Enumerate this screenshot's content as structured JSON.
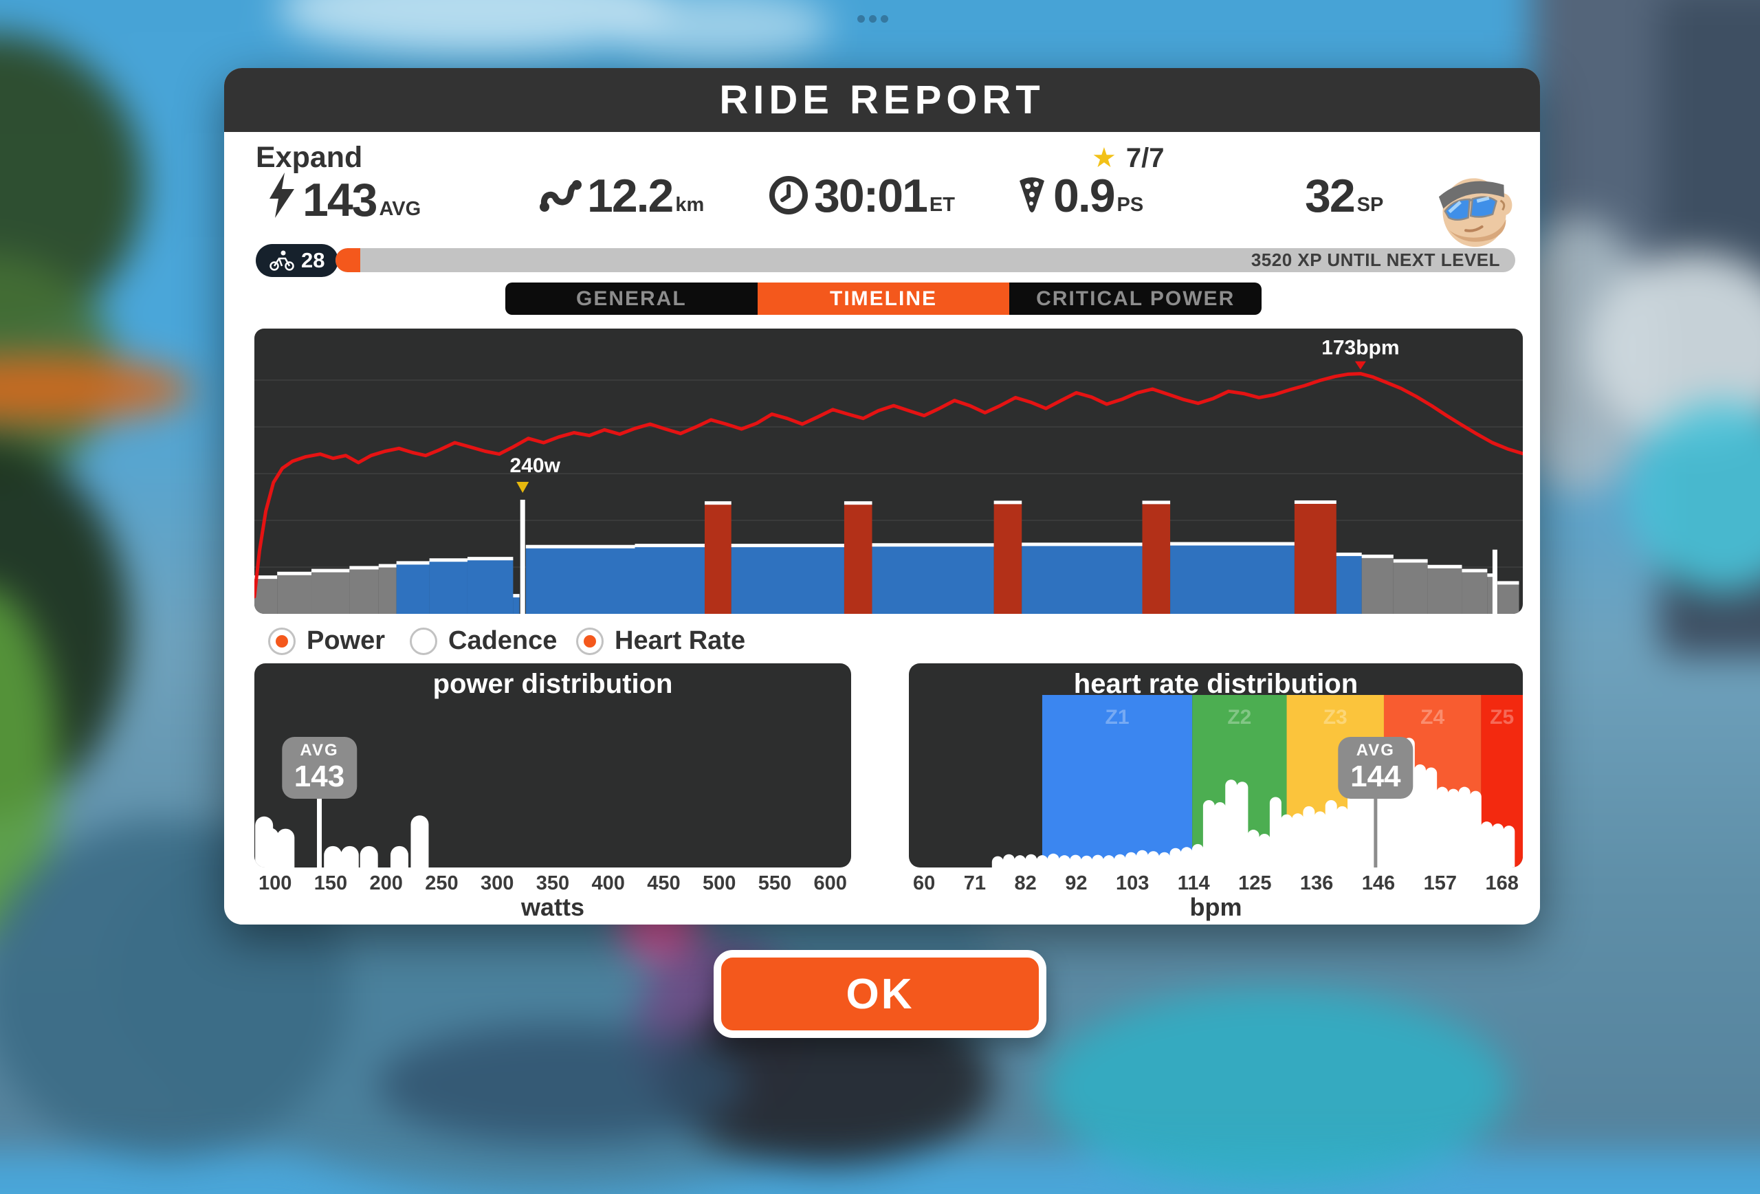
{
  "window": {
    "title": "RIDE REPORT"
  },
  "header": {
    "expand_label": "Expand",
    "route_goal": "7/7"
  },
  "stats": [
    {
      "icon": "lightning-icon",
      "value": "143",
      "unit": "AVG"
    },
    {
      "icon": "route-icon",
      "value": "12.2",
      "unit": "km"
    },
    {
      "icon": "clock-icon",
      "value": "30:01",
      "unit": "ET"
    },
    {
      "icon": "pizza-icon",
      "value": "0.9",
      "unit": "PS"
    },
    {
      "icon": "none",
      "value": "32",
      "unit": "SP"
    }
  ],
  "level": {
    "value": "28",
    "progress_pct": 2.1,
    "xp_text": "3520 XP UNTIL NEXT LEVEL"
  },
  "tabs": [
    {
      "label": "GENERAL",
      "active": false
    },
    {
      "label": "TIMELINE",
      "active": true
    },
    {
      "label": "CRITICAL POWER",
      "active": false
    }
  ],
  "legend": [
    {
      "label": "Power",
      "selected": true
    },
    {
      "label": "Cadence",
      "selected": false
    },
    {
      "label": "Heart Rate",
      "selected": true
    }
  ],
  "ok_label": "OK",
  "colors": {
    "accent_orange": "#f4581c",
    "header_dark": "#333333",
    "panel_dark": "#2d2e2e",
    "power_gray": "#7e7e7e",
    "power_blue": "#2f72bf",
    "power_red": "#b33018",
    "hr_line_red": "#e51313",
    "avg_badge_gray": "#8c8c8c",
    "star_gold": "#f2c118",
    "zone_z1": "#3b86f0",
    "zone_z2": "#4cae51",
    "zone_z3": "#fbc43c",
    "zone_z4": "#f85c30",
    "zone_z5": "#f3290f"
  },
  "chart_data": [
    {
      "type": "area",
      "name": "timeline",
      "series": [
        "power",
        "heart_rate"
      ],
      "grid": true,
      "power_steps": [
        [
          0.0,
          0.018,
          0.125,
          "g"
        ],
        [
          0.018,
          0.045,
          0.138,
          "g"
        ],
        [
          0.045,
          0.075,
          0.148,
          "g"
        ],
        [
          0.075,
          0.098,
          0.158,
          "g"
        ],
        [
          0.098,
          0.112,
          0.165,
          "g"
        ],
        [
          0.112,
          0.138,
          0.175,
          "b"
        ],
        [
          0.138,
          0.168,
          0.185,
          "b"
        ],
        [
          0.168,
          0.204,
          0.19,
          "b"
        ],
        [
          0.204,
          0.209,
          0.06,
          "b"
        ],
        [
          0.214,
          0.3,
          0.232,
          "b"
        ],
        [
          0.3,
          0.355,
          0.236,
          "b"
        ],
        [
          0.355,
          0.376,
          0.385,
          "r"
        ],
        [
          0.376,
          0.465,
          0.236,
          "b"
        ],
        [
          0.465,
          0.487,
          0.385,
          "r"
        ],
        [
          0.487,
          0.583,
          0.238,
          "b"
        ],
        [
          0.583,
          0.605,
          0.387,
          "r"
        ],
        [
          0.605,
          0.7,
          0.24,
          "b"
        ],
        [
          0.7,
          0.722,
          0.387,
          "r"
        ],
        [
          0.722,
          0.82,
          0.242,
          "b"
        ],
        [
          0.82,
          0.853,
          0.388,
          "r"
        ],
        [
          0.853,
          0.873,
          0.205,
          "b"
        ],
        [
          0.873,
          0.898,
          0.198,
          "g"
        ],
        [
          0.898,
          0.925,
          0.182,
          "g"
        ],
        [
          0.925,
          0.952,
          0.162,
          "g"
        ],
        [
          0.952,
          0.972,
          0.148,
          "g"
        ],
        [
          0.972,
          0.977,
          0.132,
          "g"
        ],
        [
          0.98,
          0.997,
          0.105,
          "g"
        ]
      ],
      "spikes": [
        {
          "x": 0.2115,
          "h": 0.4,
          "label": "240w",
          "marker": "gold"
        },
        {
          "x": 0.978,
          "h": 0.225
        }
      ],
      "hr_peak": {
        "x": 0.872,
        "label": "173bpm"
      },
      "hr_points": [
        [
          0.0,
          0.06
        ],
        [
          0.004,
          0.22
        ],
        [
          0.009,
          0.36
        ],
        [
          0.015,
          0.46
        ],
        [
          0.022,
          0.51
        ],
        [
          0.03,
          0.535
        ],
        [
          0.04,
          0.55
        ],
        [
          0.052,
          0.56
        ],
        [
          0.062,
          0.545
        ],
        [
          0.072,
          0.555
        ],
        [
          0.082,
          0.53
        ],
        [
          0.092,
          0.555
        ],
        [
          0.103,
          0.57
        ],
        [
          0.114,
          0.58
        ],
        [
          0.125,
          0.565
        ],
        [
          0.135,
          0.555
        ],
        [
          0.146,
          0.575
        ],
        [
          0.158,
          0.6
        ],
        [
          0.17,
          0.585
        ],
        [
          0.182,
          0.57
        ],
        [
          0.193,
          0.56
        ],
        [
          0.204,
          0.585
        ],
        [
          0.216,
          0.615
        ],
        [
          0.228,
          0.6
        ],
        [
          0.24,
          0.62
        ],
        [
          0.252,
          0.635
        ],
        [
          0.264,
          0.625
        ],
        [
          0.276,
          0.645
        ],
        [
          0.288,
          0.63
        ],
        [
          0.3,
          0.65
        ],
        [
          0.312,
          0.665
        ],
        [
          0.324,
          0.648
        ],
        [
          0.336,
          0.632
        ],
        [
          0.348,
          0.655
        ],
        [
          0.36,
          0.68
        ],
        [
          0.372,
          0.665
        ],
        [
          0.384,
          0.648
        ],
        [
          0.396,
          0.668
        ],
        [
          0.408,
          0.7
        ],
        [
          0.42,
          0.685
        ],
        [
          0.432,
          0.665
        ],
        [
          0.444,
          0.69
        ],
        [
          0.456,
          0.716
        ],
        [
          0.468,
          0.7
        ],
        [
          0.48,
          0.685
        ],
        [
          0.492,
          0.712
        ],
        [
          0.504,
          0.73
        ],
        [
          0.516,
          0.712
        ],
        [
          0.528,
          0.695
        ],
        [
          0.54,
          0.72
        ],
        [
          0.552,
          0.748
        ],
        [
          0.564,
          0.73
        ],
        [
          0.576,
          0.705
        ],
        [
          0.588,
          0.73
        ],
        [
          0.6,
          0.758
        ],
        [
          0.612,
          0.742
        ],
        [
          0.624,
          0.72
        ],
        [
          0.636,
          0.748
        ],
        [
          0.648,
          0.775
        ],
        [
          0.66,
          0.76
        ],
        [
          0.672,
          0.735
        ],
        [
          0.684,
          0.752
        ],
        [
          0.696,
          0.775
        ],
        [
          0.708,
          0.788
        ],
        [
          0.72,
          0.77
        ],
        [
          0.732,
          0.752
        ],
        [
          0.744,
          0.738
        ],
        [
          0.756,
          0.755
        ],
        [
          0.768,
          0.78
        ],
        [
          0.78,
          0.772
        ],
        [
          0.792,
          0.758
        ],
        [
          0.804,
          0.768
        ],
        [
          0.816,
          0.785
        ],
        [
          0.828,
          0.8
        ],
        [
          0.84,
          0.818
        ],
        [
          0.852,
          0.832
        ],
        [
          0.862,
          0.84
        ],
        [
          0.872,
          0.842
        ],
        [
          0.882,
          0.83
        ],
        [
          0.892,
          0.812
        ],
        [
          0.904,
          0.79
        ],
        [
          0.916,
          0.762
        ],
        [
          0.928,
          0.73
        ],
        [
          0.94,
          0.695
        ],
        [
          0.952,
          0.662
        ],
        [
          0.964,
          0.63
        ],
        [
          0.976,
          0.6
        ],
        [
          0.988,
          0.578
        ],
        [
          1.0,
          0.562
        ]
      ]
    },
    {
      "type": "bar",
      "name": "power_distribution",
      "title": "power distribution",
      "xlabel": "watts",
      "x_ticks": [
        "100",
        "150",
        "200",
        "250",
        "300",
        "350",
        "400",
        "450",
        "500",
        "550",
        "600"
      ],
      "axis_min": 100,
      "axis_max": 600,
      "bins": [
        [
          94,
          0.25
        ],
        [
          99,
          0.195
        ],
        [
          113,
          0.19
        ],
        [
          155,
          0.105
        ],
        [
          170,
          0.105
        ],
        [
          187,
          0.105
        ],
        [
          214,
          0.105
        ],
        [
          232,
          0.255
        ]
      ],
      "avg": {
        "label": "AVG",
        "value": "143",
        "watts": 143
      }
    },
    {
      "type": "bar",
      "name": "heart_rate_distribution",
      "title": "heart rate distribution",
      "xlabel": "bpm",
      "x_ticks": [
        "60",
        "71",
        "82",
        "92",
        "103",
        "114",
        "125",
        "136",
        "146",
        "157",
        "168"
      ],
      "axis_min": 60,
      "axis_max": 170.5,
      "zones": [
        {
          "label": "Z1",
          "from": 84,
          "to": 111,
          "color": "#3b86f0"
        },
        {
          "label": "Z2",
          "from": 111,
          "to": 128,
          "color": "#4cae51"
        },
        {
          "label": "Z3",
          "from": 128,
          "to": 145.5,
          "color": "#fbc43c"
        },
        {
          "label": "Z4",
          "from": 145.5,
          "to": 163,
          "color": "#f85c30"
        },
        {
          "label": "Z5",
          "from": 163,
          "to": 170.5,
          "color": "#f3290f"
        }
      ],
      "bins": [
        [
          76,
          0.055
        ],
        [
          78,
          0.065
        ],
        [
          80,
          0.06
        ],
        [
          82,
          0.065
        ],
        [
          84,
          0.06
        ],
        [
          86,
          0.068
        ],
        [
          88,
          0.06
        ],
        [
          90,
          0.062
        ],
        [
          92,
          0.058
        ],
        [
          94,
          0.062
        ],
        [
          96,
          0.06
        ],
        [
          98,
          0.065
        ],
        [
          100,
          0.075
        ],
        [
          102,
          0.085
        ],
        [
          104,
          0.08
        ],
        [
          106,
          0.075
        ],
        [
          108,
          0.095
        ],
        [
          110,
          0.1
        ],
        [
          112,
          0.115
        ],
        [
          114,
          0.33
        ],
        [
          116,
          0.32
        ],
        [
          118,
          0.43
        ],
        [
          120,
          0.42
        ],
        [
          122,
          0.185
        ],
        [
          124,
          0.165
        ],
        [
          126,
          0.345
        ],
        [
          128,
          0.26
        ],
        [
          130,
          0.265
        ],
        [
          132,
          0.3
        ],
        [
          134,
          0.275
        ],
        [
          136,
          0.33
        ],
        [
          138,
          0.3
        ],
        [
          140,
          0.415
        ],
        [
          142,
          0.39
        ],
        [
          144,
          0.45
        ],
        [
          146,
          0.375
        ],
        [
          148,
          0.365
        ],
        [
          150,
          0.635
        ],
        [
          152,
          0.505
        ],
        [
          154,
          0.49
        ],
        [
          156,
          0.395
        ],
        [
          158,
          0.385
        ],
        [
          160,
          0.395
        ],
        [
          162,
          0.375
        ],
        [
          164,
          0.225
        ],
        [
          166,
          0.215
        ],
        [
          168,
          0.205
        ]
      ],
      "avg": {
        "label": "AVG",
        "value": "144",
        "bpm": 144
      }
    }
  ]
}
